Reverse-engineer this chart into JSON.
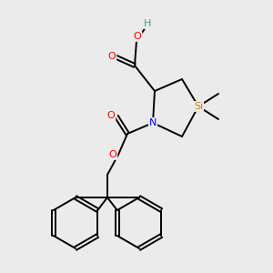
{
  "background_color": "#ebebeb",
  "atom_colors": {
    "C": "#000000",
    "H": "#4a9a8a",
    "O": "#ff0000",
    "N": "#0000ff",
    "Si": "#cc8800"
  },
  "bond_color": "#000000",
  "bond_width": 1.4,
  "fig_size": [
    3.0,
    3.0
  ],
  "dpi": 100
}
